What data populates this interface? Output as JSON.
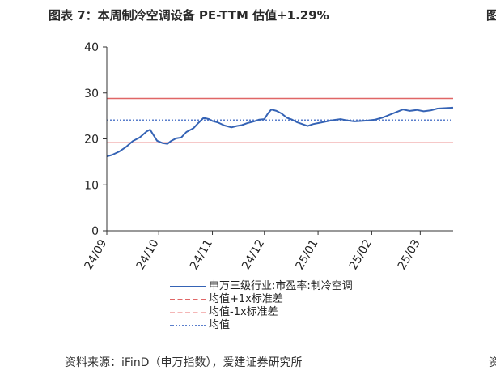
{
  "title": "图表 7：本周制冷空调设备 PE-TTM 估值+1.29%",
  "right_title": "图",
  "right_source": "资",
  "source": "资料来源：iFinD（申万指数），爱建证券研究所",
  "colors": {
    "series": "#3563b5",
    "plus1": "#e06666",
    "minus1": "#f4b6b6",
    "mean": "#5b7fcc"
  },
  "chart_data": {
    "type": "line",
    "title": "",
    "xlabel": "",
    "ylabel": "",
    "ylim": [
      0,
      40
    ],
    "yticks": [
      0,
      10,
      20,
      30,
      40
    ],
    "xlim": [
      "2024-09-01",
      "2025-03-20"
    ],
    "xticks": [
      {
        "date": "2024-09-01",
        "label": "24/09"
      },
      {
        "date": "2024-10-01",
        "label": "24/10"
      },
      {
        "date": "2024-11-01",
        "label": "24/11"
      },
      {
        "date": "2024-12-01",
        "label": "24/12"
      },
      {
        "date": "2025-01-01",
        "label": "25/01"
      },
      {
        "date": "2025-02-01",
        "label": "25/02"
      },
      {
        "date": "2025-03-01",
        "label": "25/03"
      }
    ],
    "legend_position": "bottom",
    "series": [
      {
        "name": "申万三级行业:市盈率:制冷空调",
        "style": "solid",
        "color": "#3563b5",
        "x": [
          "2024-09-01",
          "2024-09-04",
          "2024-09-08",
          "2024-09-12",
          "2024-09-16",
          "2024-09-20",
          "2024-09-24",
          "2024-09-26",
          "2024-09-30",
          "2024-10-03",
          "2024-10-06",
          "2024-10-08",
          "2024-10-11",
          "2024-10-14",
          "2024-10-17",
          "2024-10-21",
          "2024-10-24",
          "2024-10-27",
          "2024-10-30",
          "2024-11-01",
          "2024-11-04",
          "2024-11-08",
          "2024-11-12",
          "2024-11-15",
          "2024-11-18",
          "2024-11-21",
          "2024-11-25",
          "2024-11-28",
          "2024-12-01",
          "2024-12-03",
          "2024-12-05",
          "2024-12-08",
          "2024-12-11",
          "2024-12-14",
          "2024-12-17",
          "2024-12-20",
          "2024-12-23",
          "2024-12-26",
          "2024-12-29",
          "2025-01-02",
          "2025-01-06",
          "2025-01-10",
          "2025-01-14",
          "2025-01-18",
          "2025-01-22",
          "2025-01-26",
          "2025-01-30",
          "2025-02-03",
          "2025-02-07",
          "2025-02-11",
          "2025-02-15",
          "2025-02-19",
          "2025-02-23",
          "2025-02-27",
          "2025-03-03",
          "2025-03-07",
          "2025-03-11",
          "2025-03-15",
          "2025-03-20"
        ],
        "values": [
          16.2,
          16.5,
          17.2,
          18.2,
          19.5,
          20.3,
          21.6,
          22.0,
          19.6,
          19.1,
          18.9,
          19.5,
          20.1,
          20.3,
          21.5,
          22.3,
          23.5,
          24.6,
          24.3,
          23.9,
          23.6,
          22.9,
          22.5,
          22.8,
          23.0,
          23.4,
          23.8,
          24.2,
          24.3,
          25.5,
          26.4,
          26.1,
          25.5,
          24.6,
          24.2,
          23.6,
          23.2,
          22.8,
          23.2,
          23.5,
          23.8,
          24.1,
          24.3,
          24.0,
          23.8,
          23.9,
          24.0,
          24.2,
          24.6,
          25.2,
          25.8,
          26.4,
          26.1,
          26.3,
          26.0,
          26.2,
          26.6,
          26.7,
          26.8
        ]
      },
      {
        "name": "均值+1x标准差",
        "style": "solid-line",
        "color": "#e06666",
        "value": 28.8
      },
      {
        "name": "均值-1x标准差",
        "style": "solid-line",
        "color": "#f4b6b6",
        "value": 19.2
      },
      {
        "name": "均值",
        "style": "dotted-line",
        "color": "#5b7fcc",
        "value": 24.0
      }
    ],
    "legend": [
      {
        "label": "申万三级行业:市盈率:制冷空调",
        "style": "solid",
        "color": "#3563b5"
      },
      {
        "label": "均值+1x标准差",
        "style": "dashed",
        "color": "#e06666"
      },
      {
        "label": "均值-1x标准差",
        "style": "dashed",
        "color": "#f4b6b6"
      },
      {
        "label": "均值",
        "style": "dotted",
        "color": "#5b7fcc"
      }
    ]
  }
}
